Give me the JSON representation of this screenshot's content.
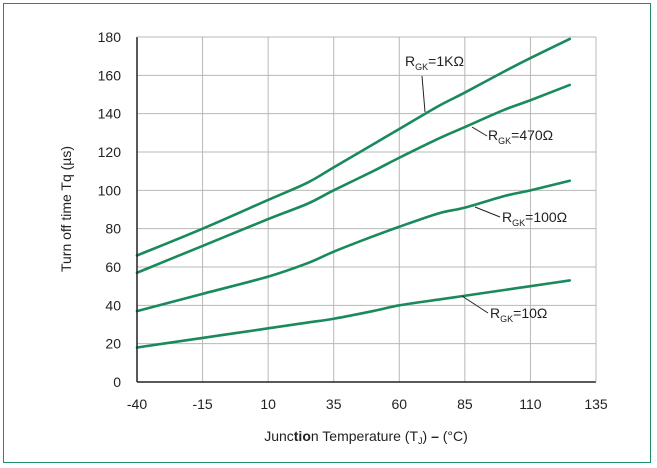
{
  "colors": {
    "series": "#1a8a5c",
    "grid": "#b8b8b8",
    "frame": "#1f8f6a",
    "axis": "#222222"
  },
  "chart_data": {
    "type": "line",
    "xlabel_parts": {
      "pre": "Junc",
      "bold": "tio",
      "post": "n Temperature (T",
      "sub": "J",
      "post2": ") ",
      "dash": "–",
      "unit": " (°C)"
    },
    "ylabel": "Turn off time Tq (µs)",
    "xlim": [
      -40,
      135
    ],
    "ylim": [
      0,
      180
    ],
    "x_ticks": [
      "-40",
      "-15",
      "10",
      "35",
      "60",
      "85",
      "110",
      "135"
    ],
    "y_ticks": [
      "0",
      "20",
      "40",
      "60",
      "80",
      "100",
      "120",
      "140",
      "160",
      "180"
    ],
    "grid": true,
    "series": [
      {
        "name": "R_GK=1KΩ",
        "label_main": "R",
        "label_sub": "GK",
        "label_rest": "=1KΩ",
        "x": [
          -40,
          -15,
          10,
          25,
          35,
          50,
          60,
          75,
          85,
          100,
          110,
          125
        ],
        "y": [
          66,
          80,
          95,
          104,
          112,
          124,
          132,
          144,
          151,
          162,
          169,
          179
        ]
      },
      {
        "name": "R_GK=470Ω",
        "label_main": "R",
        "label_sub": "GK",
        "label_rest": "=470Ω",
        "x": [
          -40,
          -15,
          10,
          25,
          35,
          50,
          60,
          75,
          85,
          100,
          110,
          125
        ],
        "y": [
          57,
          71,
          85,
          93,
          100,
          110,
          117,
          127,
          133,
          142,
          147,
          155
        ]
      },
      {
        "name": "R_GK=100Ω",
        "label_main": "R",
        "label_sub": "GK",
        "label_rest": "=100Ω",
        "x": [
          -40,
          -15,
          10,
          25,
          35,
          50,
          60,
          75,
          85,
          100,
          110,
          125
        ],
        "y": [
          37,
          46,
          55,
          62,
          68,
          76,
          81,
          88,
          91,
          97,
          100,
          105
        ]
      },
      {
        "name": "R_GK=10Ω",
        "label_main": "R",
        "label_sub": "GK",
        "label_rest": "=10Ω",
        "x": [
          -40,
          -15,
          10,
          25,
          35,
          50,
          60,
          75,
          85,
          100,
          110,
          125
        ],
        "y": [
          18,
          23,
          28,
          31,
          33,
          37,
          40,
          43,
          45,
          48,
          50,
          53
        ]
      }
    ]
  }
}
